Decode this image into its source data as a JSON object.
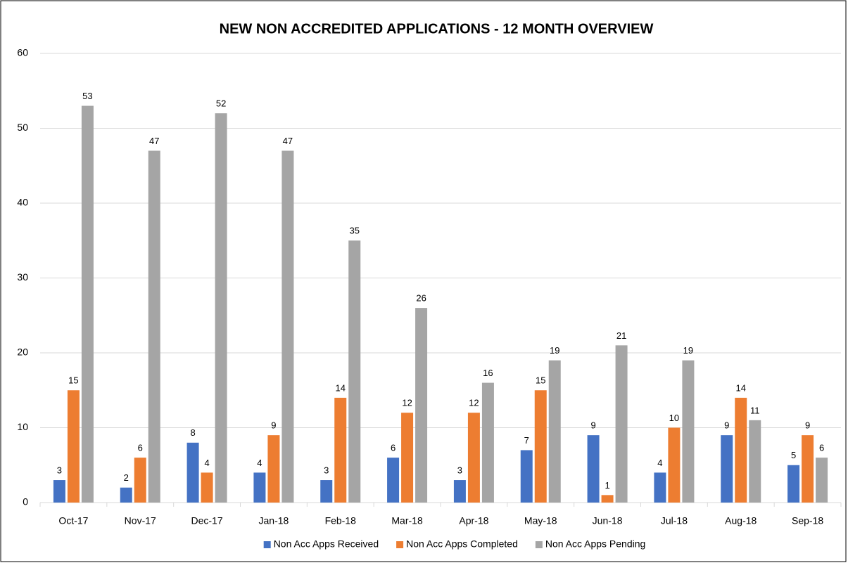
{
  "chart_data": {
    "type": "bar",
    "title": "NEW NON ACCREDITED APPLICATIONS - 12 MONTH OVERVIEW",
    "categories": [
      "Oct-17",
      "Nov-17",
      "Dec-17",
      "Jan-18",
      "Feb-18",
      "Mar-18",
      "Apr-18",
      "May-18",
      "Jun-18",
      "Jul-18",
      "Aug-18",
      "Sep-18"
    ],
    "series": [
      {
        "name": "Non Acc Apps Received",
        "color": "#4472c4",
        "values": [
          3,
          2,
          8,
          4,
          3,
          6,
          3,
          7,
          9,
          4,
          9,
          5
        ]
      },
      {
        "name": "Non Acc Apps Completed",
        "color": "#ed7d31",
        "values": [
          15,
          6,
          4,
          9,
          14,
          12,
          12,
          15,
          1,
          10,
          14,
          9
        ]
      },
      {
        "name": "Non Acc Apps Pending",
        "color": "#a5a5a5",
        "values": [
          53,
          47,
          52,
          47,
          35,
          26,
          16,
          19,
          21,
          19,
          11,
          6
        ]
      }
    ],
    "ylim": [
      0,
      60
    ],
    "yticks": [
      0,
      10,
      20,
      30,
      40,
      50,
      60
    ],
    "grid": true,
    "legend": "bottom"
  }
}
